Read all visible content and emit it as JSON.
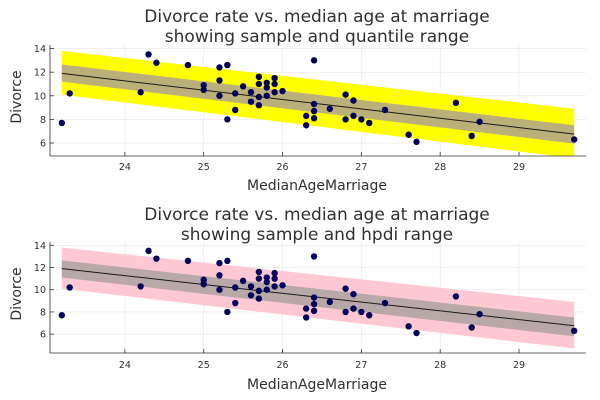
{
  "chart_data": [
    {
      "type": "scatter",
      "title": [
        "Divorce rate vs. median age at marriage",
        "showing sample and quantile range"
      ],
      "xlabel": "MedianAgeMarriage",
      "ylabel": "Divorce",
      "xlim": [
        23.05,
        29.85
      ],
      "ylim": [
        4.9,
        14.3
      ],
      "xticks": [
        24,
        25,
        26,
        27,
        28,
        29
      ],
      "yticks": [
        6,
        8,
        10,
        12,
        14
      ],
      "grid": true,
      "legend": "none",
      "colors": {
        "points": "#00005a",
        "line": "#1a1a1a",
        "inner_band": "#bcb07a",
        "outer_band": "#ffff00"
      },
      "fit_line": {
        "x": [
          23.2,
          29.7
        ],
        "y": [
          11.9,
          6.75
        ]
      },
      "inner_band": {
        "x": [
          23.2,
          29.7
        ],
        "lower": [
          11.2,
          5.95
        ],
        "upper": [
          12.65,
          7.5
        ]
      },
      "outer_band": {
        "x": [
          23.2,
          29.7
        ],
        "lower": [
          10.1,
          4.7
        ],
        "upper": [
          13.8,
          8.9
        ]
      },
      "points": {
        "x": [
          23.2,
          23.3,
          24.2,
          24.3,
          24.4,
          24.8,
          25.0,
          25.0,
          25.2,
          25.2,
          25.2,
          25.3,
          25.3,
          25.4,
          25.4,
          25.5,
          25.6,
          25.6,
          25.7,
          25.7,
          25.7,
          25.7,
          25.8,
          25.8,
          25.8,
          25.9,
          25.9,
          25.9,
          26.0,
          26.3,
          26.3,
          26.4,
          26.4,
          26.4,
          26.4,
          26.6,
          26.8,
          26.8,
          26.9,
          26.9,
          27.0,
          27.1,
          27.3,
          27.6,
          27.7,
          28.2,
          28.4,
          28.5,
          29.7
        ],
        "y": [
          7.7,
          10.2,
          10.3,
          13.5,
          12.8,
          12.6,
          10.5,
          10.9,
          12.4,
          11.3,
          10.0,
          12.6,
          8.0,
          8.8,
          10.2,
          10.8,
          9.5,
          10.3,
          9.9,
          11.0,
          11.6,
          9.2,
          10.7,
          11.1,
          10.0,
          10.3,
          11.0,
          11.5,
          10.4,
          7.5,
          8.3,
          13.0,
          8.1,
          8.7,
          9.3,
          8.9,
          8.0,
          10.1,
          8.3,
          9.6,
          8.0,
          7.7,
          8.8,
          6.7,
          6.1,
          9.4,
          6.6,
          7.8,
          6.3
        ]
      }
    },
    {
      "type": "scatter",
      "title": [
        "Divorce rate vs. median age at marriage",
        "showing sample and hpdi range"
      ],
      "xlabel": "MedianAgeMarriage",
      "ylabel": "Divorce",
      "xlim": [
        23.05,
        29.85
      ],
      "ylim": [
        4.3,
        14.3
      ],
      "xticks": [
        24,
        25,
        26,
        27,
        28,
        29
      ],
      "yticks": [
        6,
        8,
        10,
        12,
        14
      ],
      "grid": true,
      "legend": "none",
      "colors": {
        "points": "#00005a",
        "line": "#1a1a1a",
        "inner_band": "#b8a8a8",
        "outer_band": "#ffc8d2"
      },
      "fit_line": {
        "x": [
          23.2,
          29.7
        ],
        "y": [
          11.9,
          6.75
        ]
      },
      "inner_band": {
        "x": [
          23.2,
          29.7
        ],
        "lower": [
          11.1,
          5.8
        ],
        "upper": [
          12.65,
          7.5
        ]
      },
      "outer_band": {
        "x": [
          23.2,
          29.7
        ],
        "lower": [
          10.1,
          4.7
        ],
        "upper": [
          13.8,
          8.9
        ]
      },
      "points": {
        "x": [
          23.2,
          23.3,
          24.2,
          24.3,
          24.4,
          24.8,
          25.0,
          25.0,
          25.2,
          25.2,
          25.2,
          25.3,
          25.3,
          25.4,
          25.4,
          25.5,
          25.6,
          25.6,
          25.7,
          25.7,
          25.7,
          25.7,
          25.8,
          25.8,
          25.8,
          25.9,
          25.9,
          25.9,
          26.0,
          26.3,
          26.3,
          26.4,
          26.4,
          26.4,
          26.4,
          26.6,
          26.8,
          26.8,
          26.9,
          26.9,
          27.0,
          27.1,
          27.3,
          27.6,
          27.7,
          28.2,
          28.4,
          28.5,
          29.7
        ],
        "y": [
          7.7,
          10.2,
          10.3,
          13.5,
          12.8,
          12.6,
          10.5,
          10.9,
          12.4,
          11.3,
          10.0,
          12.6,
          8.0,
          8.8,
          10.2,
          10.8,
          9.5,
          10.3,
          9.9,
          11.0,
          11.6,
          9.2,
          10.7,
          11.1,
          10.0,
          10.3,
          11.0,
          11.5,
          10.4,
          7.5,
          8.3,
          13.0,
          8.1,
          8.7,
          9.3,
          8.9,
          8.0,
          10.1,
          8.3,
          9.6,
          8.0,
          7.7,
          8.8,
          6.7,
          6.1,
          9.4,
          6.6,
          7.8,
          6.3
        ]
      }
    }
  ]
}
